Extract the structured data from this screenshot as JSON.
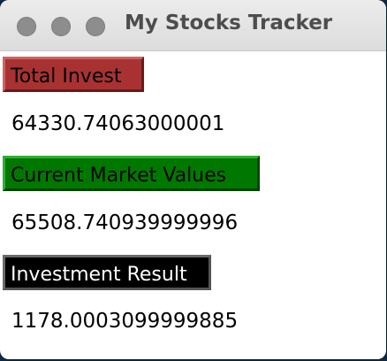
{
  "window": {
    "title": "My Stocks Tracker"
  },
  "total_invest": {
    "label": "Total Invest",
    "value": "64330.74063000001",
    "color": "#a83232"
  },
  "current_market_values": {
    "label": "Current Market Values",
    "value": "65508.740939999996",
    "color": "#007800"
  },
  "investment_result": {
    "label": "Investment Result",
    "value": "1178.0003099999885",
    "color": "#000000"
  }
}
